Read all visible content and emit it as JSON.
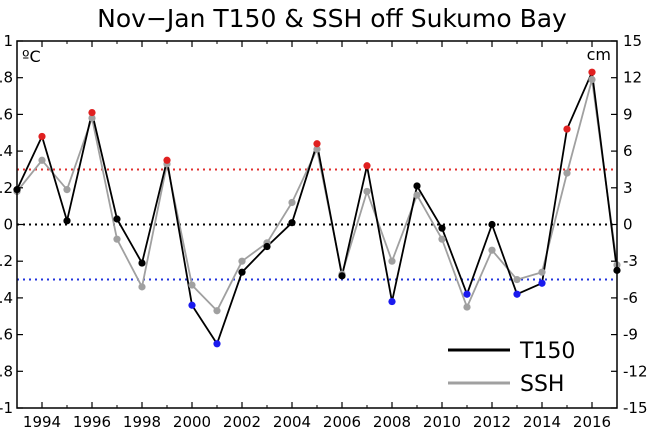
{
  "chart_data": {
    "type": "line",
    "title": "Nov−Jan T150 & SSH off Sukumo Bay",
    "left_unit": "ºC",
    "right_unit": "cm",
    "x": [
      1993,
      1994,
      1995,
      1996,
      1997,
      1998,
      1999,
      2000,
      2001,
      2002,
      2003,
      2004,
      2005,
      2006,
      2007,
      2008,
      2009,
      2010,
      2011,
      2012,
      2013,
      2014,
      2015,
      2016,
      2017
    ],
    "xlim": [
      1993,
      2017
    ],
    "x_ticks": [
      "1994",
      "1996",
      "1998",
      "2000",
      "2002",
      "2004",
      "2006",
      "2008",
      "2010",
      "2012",
      "2014",
      "2016"
    ],
    "ylim_left": [
      -1,
      1
    ],
    "y_ticks_left": [
      "1",
      "0.8",
      "0.6",
      "0.4",
      "0.2",
      "0",
      "-0.2",
      "-0.4",
      "-0.6",
      "-0.8",
      "-1"
    ],
    "ylim_right": [
      -15,
      15
    ],
    "y_ticks_right": [
      "15",
      "12",
      "9",
      "6",
      "3",
      "0",
      "-3",
      "-6",
      "-9",
      "-12",
      "-15"
    ],
    "reference_lines": [
      {
        "y": 0.3,
        "color": "#e03030"
      },
      {
        "y": 0,
        "color": "#000000"
      },
      {
        "y": -0.3,
        "color": "#2233dd"
      }
    ],
    "series": [
      {
        "name": "T150",
        "axis": "left",
        "color": "#000000",
        "values": [
          0.19,
          0.48,
          0.02,
          0.61,
          0.03,
          -0.21,
          0.35,
          -0.44,
          -0.65,
          -0.26,
          -0.12,
          0.01,
          0.44,
          -0.28,
          0.32,
          -0.42,
          0.21,
          -0.02,
          -0.38,
          0.0,
          -0.38,
          -0.32,
          0.52,
          0.83,
          -0.25
        ],
        "point_colors": [
          "#000000",
          "#e02020",
          "#000000",
          "#e02020",
          "#000000",
          "#000000",
          "#e02020",
          "#1a1aee",
          "#1a1aee",
          "#000000",
          "#000000",
          "#000000",
          "#e02020",
          "#000000",
          "#e02020",
          "#1a1aee",
          "#000000",
          "#000000",
          "#1a1aee",
          "#000000",
          "#1a1aee",
          "#1a1aee",
          "#e02020",
          "#e02020",
          "#000000"
        ]
      },
      {
        "name": "SSH",
        "axis": "left",
        "color": "#a0a0a0",
        "values": [
          0.18,
          0.35,
          0.19,
          0.58,
          -0.08,
          -0.34,
          0.33,
          -0.33,
          -0.47,
          -0.2,
          -0.1,
          0.12,
          0.41,
          -0.27,
          0.18,
          -0.2,
          0.16,
          -0.08,
          -0.45,
          -0.14,
          -0.3,
          -0.26,
          0.28,
          0.79,
          -0.22
        ]
      }
    ],
    "legend": {
      "position": "bottom-right",
      "items": [
        "T150",
        "SSH"
      ]
    }
  }
}
